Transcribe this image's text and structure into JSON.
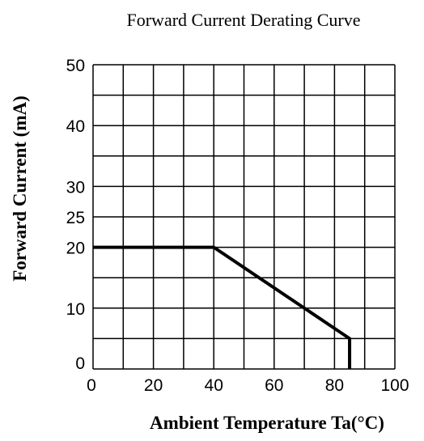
{
  "chart_data": {
    "type": "line",
    "title": "Forward Current Derating Curve",
    "xlabel": "Ambient Temperature Ta(°C)",
    "ylabel": "Forward Current (mA)",
    "xlim": [
      0,
      100
    ],
    "ylim": [
      0,
      50
    ],
    "grid": true,
    "x_ticks": [
      0,
      20,
      40,
      60,
      80,
      100
    ],
    "y_ticks": [
      0,
      10,
      20,
      25,
      30,
      40,
      50
    ],
    "x_gridlines": [
      0,
      10,
      20,
      30,
      40,
      50,
      60,
      70,
      80,
      90,
      100
    ],
    "y_gridlines": [
      0,
      5,
      10,
      15,
      20,
      25,
      30,
      35,
      40,
      45,
      50
    ],
    "series": [
      {
        "x": [
          0,
          40,
          85,
          85
        ],
        "y": [
          20,
          20,
          5,
          0
        ]
      }
    ],
    "colors": {
      "line": "#000000",
      "grid": "#000000"
    }
  }
}
